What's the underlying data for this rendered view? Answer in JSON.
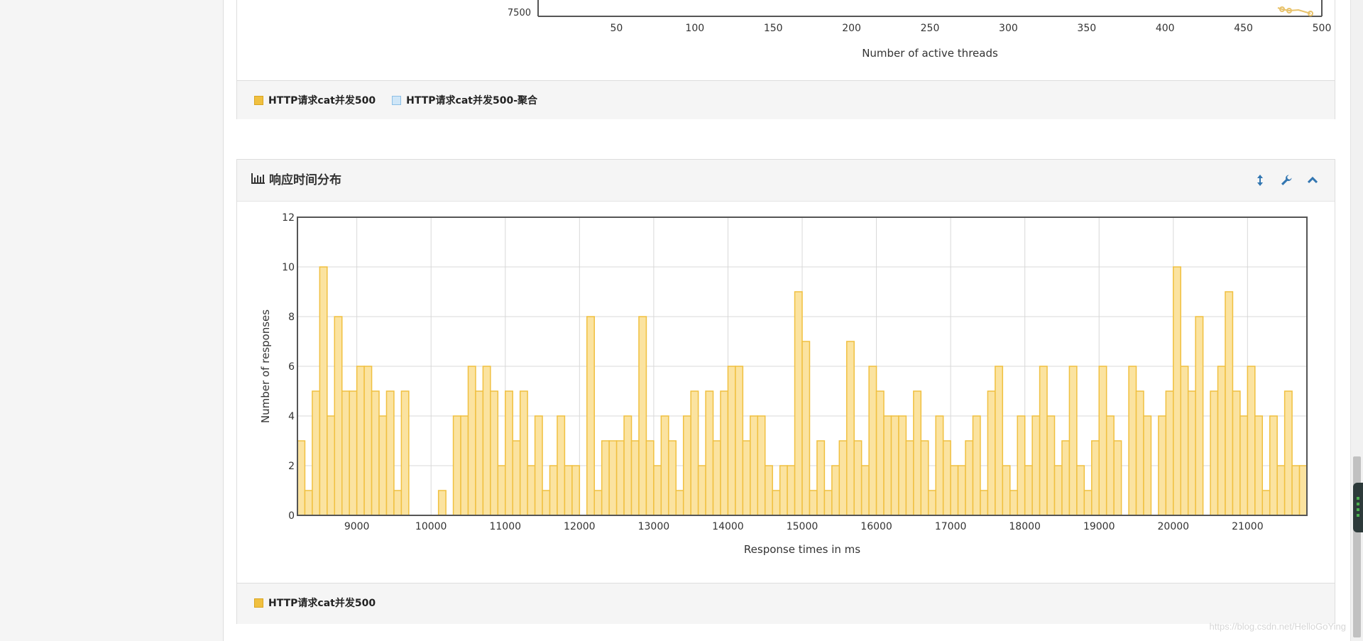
{
  "top_panel": {
    "x_axis_label": "Number of active threads",
    "y_tick_visible": "7500",
    "x_ticks": [
      50,
      100,
      150,
      200,
      250,
      300,
      350,
      400,
      450,
      500
    ],
    "x_range": [
      0,
      500
    ],
    "legend": [
      {
        "label": "HTTP请求cat并发500",
        "color": "#f0c040"
      },
      {
        "label": "HTTP请求cat并发500-聚合",
        "color": "#b8d8f0"
      }
    ]
  },
  "bottom_panel": {
    "title": "响应时间分布",
    "title_icon": "bar-chart-icon",
    "tools": [
      "vertical-resize-icon",
      "wrench-icon",
      "chevron-up-icon"
    ],
    "legend": [
      {
        "label": "HTTP请求cat并发500",
        "color": "#f0c040"
      }
    ]
  },
  "chart_data": {
    "type": "bar",
    "title": "响应时间分布",
    "xlabel": "Response times in ms",
    "ylabel": "Number of responses",
    "xlim": [
      8200,
      21800
    ],
    "ylim": [
      0,
      12
    ],
    "x_ticks": [
      9000,
      10000,
      11000,
      12000,
      13000,
      14000,
      15000,
      16000,
      17000,
      18000,
      19000,
      20000,
      21000
    ],
    "y_ticks": [
      0,
      2,
      4,
      6,
      8,
      10,
      12
    ],
    "grid": true,
    "bin_width_ms": 100,
    "series": [
      {
        "name": "HTTP请求cat并发500",
        "color": "#f0c040",
        "fill": "#fbe3a0",
        "x": [
          8200,
          8300,
          8400,
          8500,
          8600,
          8700,
          8800,
          8900,
          9000,
          9100,
          9200,
          9300,
          9400,
          9500,
          9600,
          9700,
          9800,
          9900,
          10000,
          10100,
          10200,
          10300,
          10400,
          10500,
          10600,
          10700,
          10800,
          10900,
          11000,
          11100,
          11200,
          11300,
          11400,
          11500,
          11600,
          11700,
          11800,
          11900,
          12000,
          12100,
          12200,
          12300,
          12400,
          12500,
          12600,
          12700,
          12800,
          12900,
          13000,
          13100,
          13200,
          13300,
          13400,
          13500,
          13600,
          13700,
          13800,
          13900,
          14000,
          14100,
          14200,
          14300,
          14400,
          14500,
          14600,
          14700,
          14800,
          14900,
          15000,
          15100,
          15200,
          15300,
          15400,
          15500,
          15600,
          15700,
          15800,
          15900,
          16000,
          16100,
          16200,
          16300,
          16400,
          16500,
          16600,
          16700,
          16800,
          16900,
          17000,
          17100,
          17200,
          17300,
          17400,
          17500,
          17600,
          17700,
          17800,
          17900,
          18000,
          18100,
          18200,
          18300,
          18400,
          18500,
          18600,
          18700,
          18800,
          18900,
          19000,
          19100,
          19200,
          19300,
          19400,
          19500,
          19600,
          19700,
          19800,
          19900,
          20000,
          20100,
          20200,
          20300,
          20400,
          20500,
          20600,
          20700,
          20800,
          20900,
          21000,
          21100,
          21200,
          21300,
          21400,
          21500,
          21600,
          21700
        ],
        "values": [
          3,
          1,
          5,
          10,
          4,
          8,
          5,
          5,
          6,
          6,
          5,
          4,
          5,
          1,
          5,
          0,
          0,
          0,
          0,
          1,
          0,
          4,
          4,
          6,
          5,
          6,
          5,
          2,
          5,
          3,
          5,
          2,
          4,
          1,
          2,
          4,
          2,
          2,
          0,
          8,
          1,
          3,
          3,
          3,
          4,
          3,
          8,
          3,
          2,
          4,
          3,
          1,
          4,
          5,
          2,
          5,
          3,
          5,
          6,
          6,
          3,
          4,
          4,
          2,
          1,
          2,
          2,
          9,
          7,
          1,
          3,
          1,
          2,
          3,
          7,
          3,
          2,
          6,
          5,
          4,
          4,
          4,
          3,
          5,
          3,
          1,
          4,
          3,
          2,
          2,
          3,
          4,
          1,
          5,
          6,
          2,
          1,
          4,
          2,
          4,
          6,
          4,
          2,
          3,
          6,
          2,
          1,
          3,
          6,
          4,
          3,
          0,
          6,
          5,
          4,
          0,
          4,
          5,
          10,
          6,
          5,
          8,
          0,
          5,
          6,
          9,
          5,
          4,
          6,
          4,
          1,
          4,
          2,
          5,
          2,
          2
        ]
      }
    ]
  },
  "watermark": "https://blog.csdn.net/HelloGoYing"
}
